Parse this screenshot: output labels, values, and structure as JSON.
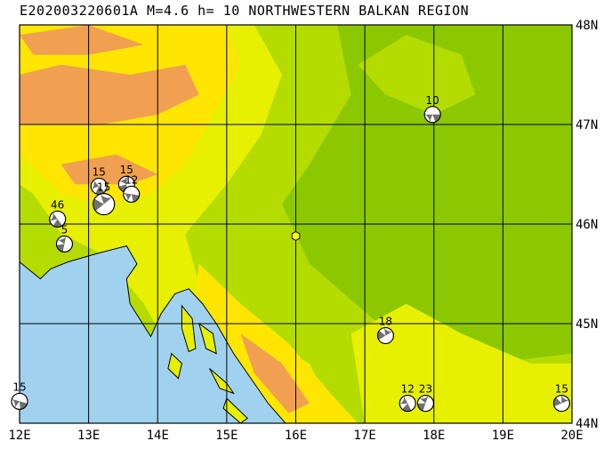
{
  "title": "E202003220601A  M=4.6  h= 10  NORTHWESTERN BALKAN REGION",
  "map": {
    "lon_range": [
      12,
      20
    ],
    "lat_range": [
      44,
      48
    ],
    "lon_labels": [
      "12E",
      "13E",
      "14E",
      "15E",
      "16E",
      "17E",
      "18E",
      "19E",
      "20E"
    ],
    "lat_labels": [
      "44N",
      "45N",
      "46N",
      "47N",
      "48N"
    ],
    "epicenter": {
      "lon": 16.0,
      "lat": 45.88
    },
    "colors": {
      "lowland": "#8cc800",
      "hills": "#b4dc00",
      "upland": "#e6f000",
      "mountain": "#ffe600",
      "high": "#f0a050",
      "sea": "#a0d2f0",
      "grid": "#000000",
      "epicenter": "#ffff00"
    }
  },
  "events": [
    {
      "depth": "10",
      "lon": 17.98,
      "lat": 47.1
    },
    {
      "depth": "15",
      "lon": 13.15,
      "lat": 46.38
    },
    {
      "depth": "15",
      "lon": 13.55,
      "lat": 46.4
    },
    {
      "depth": "15",
      "lon": 13.22,
      "lat": 46.2
    },
    {
      "depth": "12",
      "lon": 13.62,
      "lat": 46.3
    },
    {
      "depth": "46",
      "lon": 12.55,
      "lat": 46.05
    },
    {
      "depth": "5",
      "lon": 12.65,
      "lat": 45.8
    },
    {
      "depth": "18",
      "lon": 17.3,
      "lat": 44.88
    },
    {
      "depth": "15",
      "lon": 12.0,
      "lat": 44.22
    },
    {
      "depth": "12",
      "lon": 17.62,
      "lat": 44.2
    },
    {
      "depth": "23",
      "lon": 17.88,
      "lat": 44.2
    },
    {
      "depth": "15",
      "lon": 19.85,
      "lat": 44.2
    }
  ]
}
